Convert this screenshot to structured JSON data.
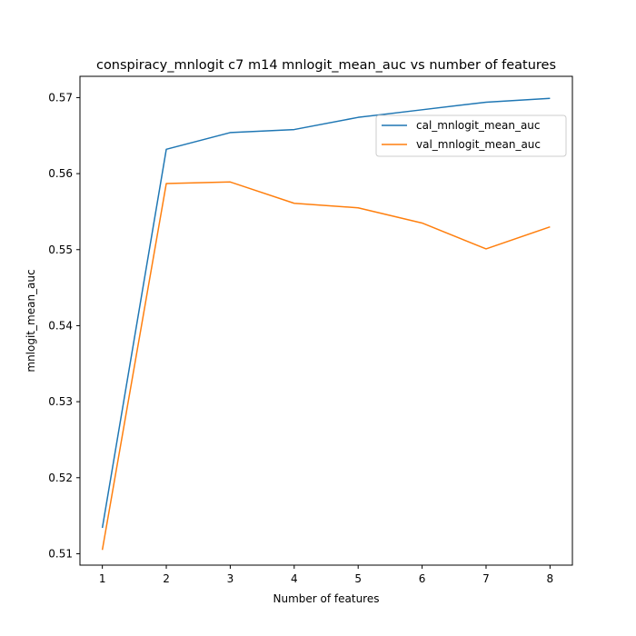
{
  "chart_data": {
    "type": "line",
    "title": "conspiracy_mnlogit c7 m14 mnlogit_mean_auc vs number of features",
    "xlabel": "Number of features",
    "ylabel": "mnlogit_mean_auc",
    "x": [
      1,
      2,
      3,
      4,
      5,
      6,
      7,
      8
    ],
    "xlim": [
      0.65,
      8.35
    ],
    "ylim": [
      0.5085,
      0.5728
    ],
    "xticks": [
      1,
      2,
      3,
      4,
      5,
      6,
      7,
      8
    ],
    "yticks": [
      0.51,
      0.52,
      0.53,
      0.54,
      0.55,
      0.56,
      0.57
    ],
    "grid": false,
    "legend_position": "upper-right",
    "series": [
      {
        "name": "cal_mnlogit_mean_auc",
        "color": "#1f77b4",
        "values": [
          0.5134,
          0.5632,
          0.5654,
          0.5658,
          0.5674,
          0.5684,
          0.5694,
          0.5699
        ]
      },
      {
        "name": "val_mnlogit_mean_auc",
        "color": "#ff7f0e",
        "values": [
          0.5105,
          0.5587,
          0.5589,
          0.5561,
          0.5555,
          0.5535,
          0.5501,
          0.553
        ]
      }
    ]
  }
}
